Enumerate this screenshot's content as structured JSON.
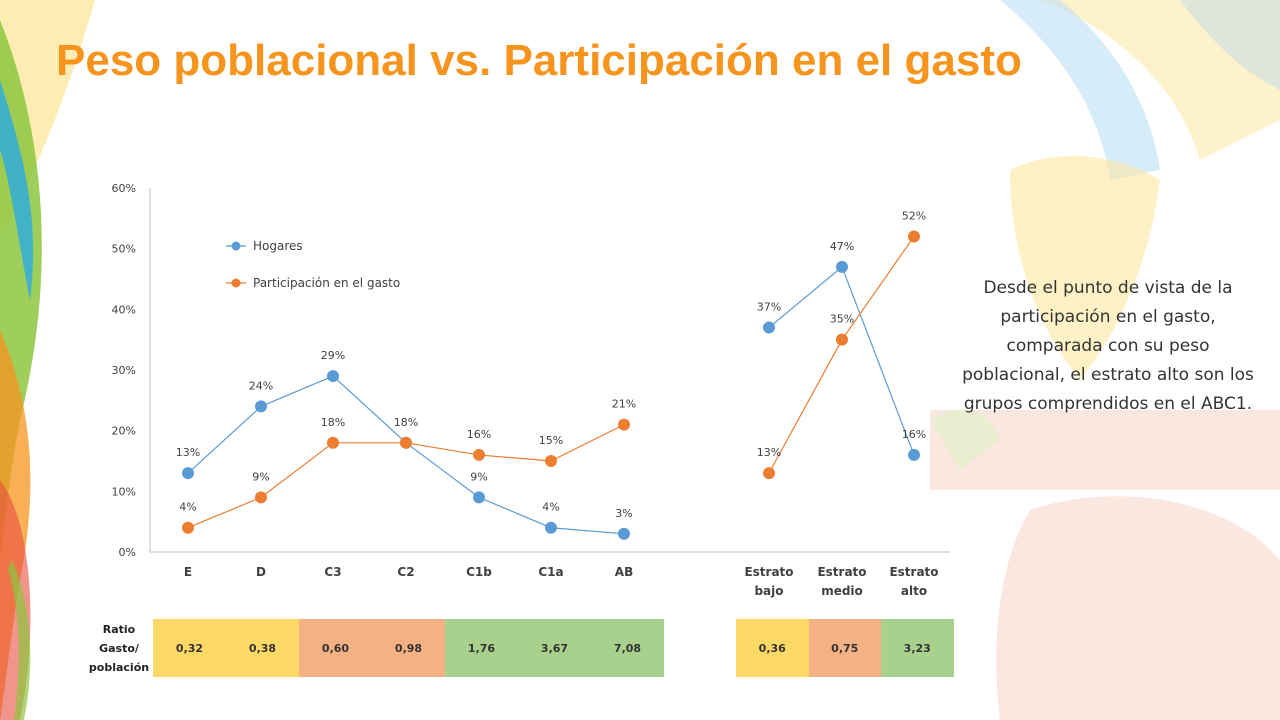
{
  "title": "Peso poblacional vs. Participación en el gasto",
  "side_text": "Desde el punto de vista de la participación en el gasto, comparada con su peso poblacional, el estrato alto son los grupos comprendidos en el ABC1.",
  "colors": {
    "title": "#f7941d",
    "hogares": "#5b9bd5",
    "gasto": "#ed7d31",
    "yellow": "#ffd966",
    "salmon": "#f4b183",
    "green": "#a9d18e"
  },
  "ratio": {
    "label": "Ratio Gasto/ población",
    "left": [
      {
        "value": "0,32",
        "color": "yellow"
      },
      {
        "value": "0,38",
        "color": "yellow"
      },
      {
        "value": "0,60",
        "color": "salmon"
      },
      {
        "value": "0,98",
        "color": "salmon"
      },
      {
        "value": "1,76",
        "color": "green"
      },
      {
        "value": "3,67",
        "color": "green"
      },
      {
        "value": "7,08",
        "color": "green"
      }
    ],
    "right": [
      {
        "value": "0,36",
        "color": "yellow"
      },
      {
        "value": "0,75",
        "color": "salmon"
      },
      {
        "value": "3,23",
        "color": "green"
      }
    ]
  },
  "chart_data": [
    {
      "type": "line",
      "categories": [
        "E",
        "D",
        "C3",
        "C2",
        "C1b",
        "C1a",
        "AB"
      ],
      "y_ticks": [
        "0%",
        "10%",
        "20%",
        "30%",
        "40%",
        "50%",
        "60%"
      ],
      "ylim": [
        0,
        60
      ],
      "legend_position": "top-left",
      "series": [
        {
          "name": "Hogares",
          "values": [
            13,
            24,
            29,
            18,
            9,
            4,
            3
          ],
          "labels": [
            "13%",
            "24%",
            "29%",
            "18%",
            "9%",
            "4%",
            "3%"
          ]
        },
        {
          "name": "Participación en el gasto",
          "values": [
            4,
            9,
            18,
            18,
            16,
            15,
            21
          ],
          "labels": [
            "4%",
            "9%",
            "18%",
            "",
            "16%",
            "15%",
            "21%"
          ]
        }
      ]
    },
    {
      "type": "line",
      "categories": [
        "Estrato bajo",
        "Estrato medio",
        "Estrato alto"
      ],
      "ylim": [
        0,
        60
      ],
      "series": [
        {
          "name": "Hogares",
          "values": [
            37,
            47,
            16
          ],
          "labels": [
            "37%",
            "47%",
            "16%"
          ]
        },
        {
          "name": "Participación en el gasto",
          "values": [
            13,
            35,
            52
          ],
          "labels": [
            "13%",
            "35%",
            "52%"
          ]
        }
      ]
    }
  ]
}
